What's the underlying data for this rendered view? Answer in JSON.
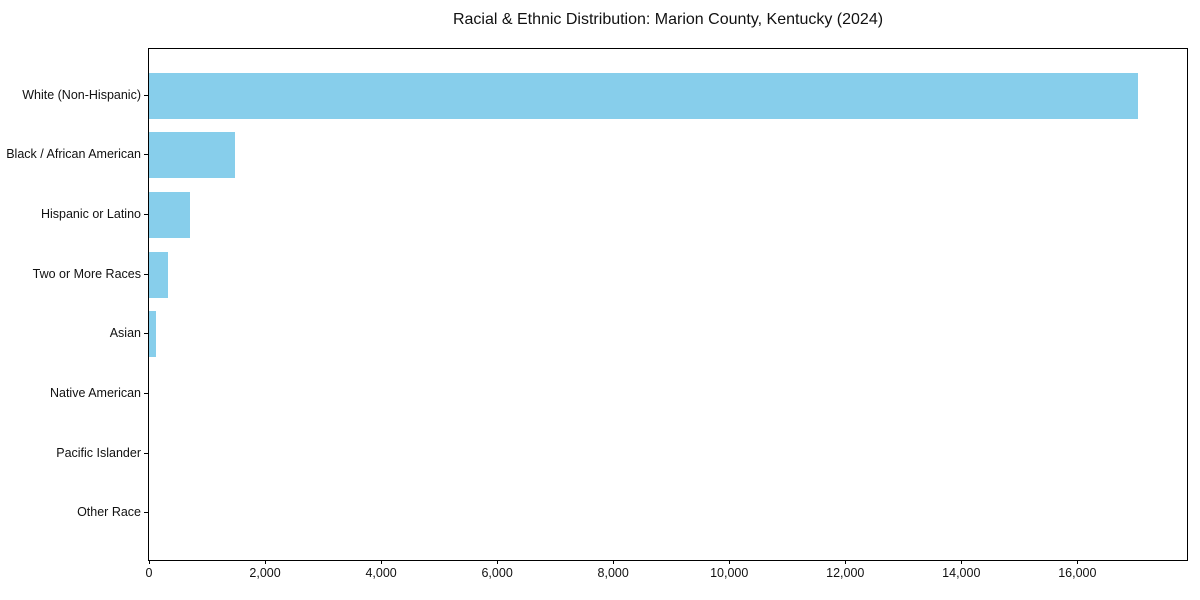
{
  "chart_data": {
    "type": "bar",
    "orientation": "horizontal",
    "title": "Racial & Ethnic Distribution: Marion County, Kentucky (2024)",
    "categories": [
      "White (Non-Hispanic)",
      "Black / African American",
      "Hispanic or Latino",
      "Two or More Races",
      "Asian",
      "Native American",
      "Pacific Islander",
      "Other Race"
    ],
    "values": [
      17040,
      1480,
      710,
      335,
      120,
      0,
      0,
      0
    ],
    "xlabel": "",
    "ylabel": "",
    "xlim": [
      0,
      17890
    ],
    "x_ticks": [
      0,
      2000,
      4000,
      6000,
      8000,
      10000,
      12000,
      14000,
      16000
    ],
    "x_tick_labels": [
      "0",
      "2,000",
      "4,000",
      "6,000",
      "8,000",
      "10,000",
      "12,000",
      "14,000",
      "16,000"
    ],
    "bar_color": "#87CEEB",
    "background_color": "#ffffff",
    "spine_color": "#000000",
    "grid": false,
    "legend": null
  }
}
